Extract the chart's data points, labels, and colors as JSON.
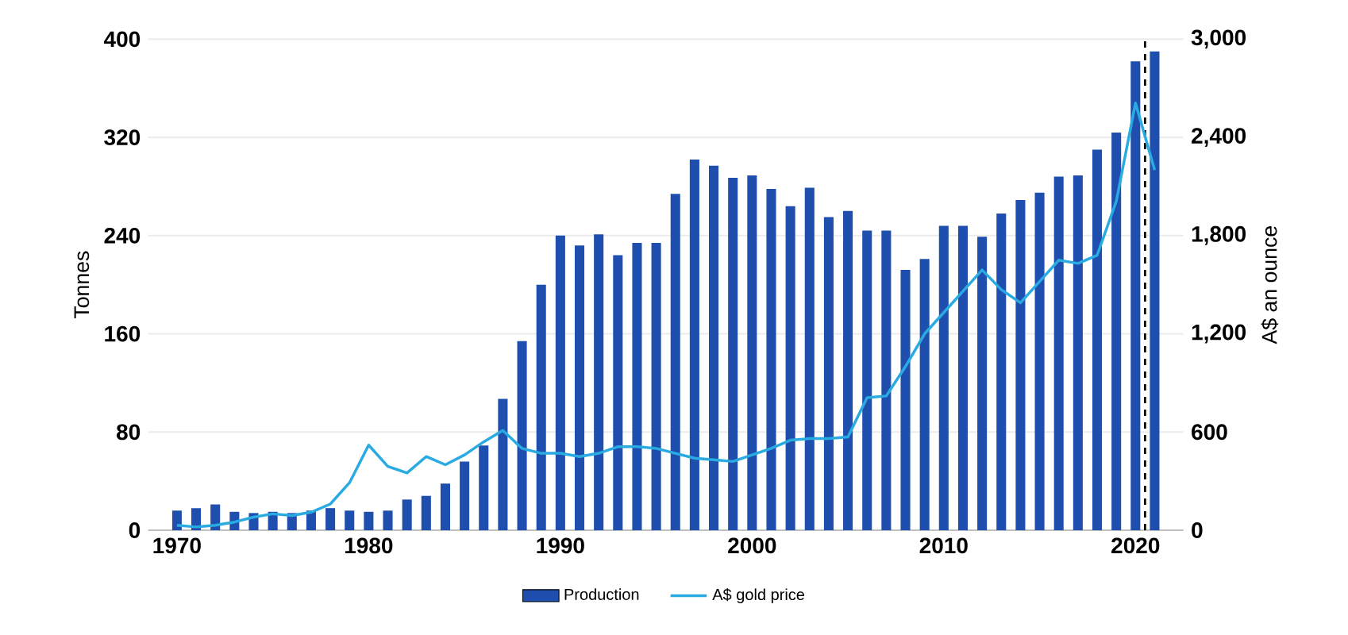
{
  "chart_data": {
    "type": "bar",
    "ylabel": "Tonnes",
    "y2label": "A$ an ounce",
    "x": [
      1970,
      1971,
      1972,
      1973,
      1974,
      1975,
      1976,
      1977,
      1978,
      1979,
      1980,
      1981,
      1982,
      1983,
      1984,
      1985,
      1986,
      1987,
      1988,
      1989,
      1990,
      1991,
      1992,
      1993,
      1994,
      1995,
      1996,
      1997,
      1998,
      1999,
      2000,
      2001,
      2002,
      2003,
      2004,
      2005,
      2006,
      2007,
      2008,
      2009,
      2010,
      2011,
      2012,
      2013,
      2014,
      2015,
      2016,
      2017,
      2018,
      2019,
      2020,
      2021
    ],
    "series": [
      {
        "name": "Production",
        "color": "#1f4fae",
        "values": [
          16,
          18,
          21,
          15,
          14,
          15,
          14,
          16,
          18,
          16,
          15,
          16,
          25,
          28,
          38,
          56,
          69,
          107,
          154,
          200,
          240,
          232,
          241,
          224,
          234,
          234,
          274,
          302,
          297,
          287,
          289,
          278,
          264,
          279,
          255,
          260,
          244,
          244,
          212,
          221,
          248,
          248,
          239,
          258,
          269,
          275,
          288,
          289,
          310,
          324,
          382,
          390
        ]
      },
      {
        "name": "A$ gold price",
        "type": "line",
        "axis": "y2",
        "color": "#29abe2",
        "values": [
          30,
          20,
          30,
          50,
          80,
          100,
          90,
          110,
          160,
          290,
          520,
          390,
          350,
          450,
          400,
          460,
          540,
          610,
          500,
          470,
          470,
          450,
          470,
          510,
          510,
          500,
          470,
          440,
          430,
          420,
          460,
          500,
          550,
          560,
          560,
          570,
          810,
          820,
          1000,
          1200,
          1330,
          1460,
          1590,
          1470,
          1390,
          1520,
          1650,
          1630,
          1680,
          2010,
          2610,
          2200
        ]
      }
    ],
    "xlim": [
      1968.5,
      2022.5
    ],
    "xticks": [
      1970,
      1980,
      1990,
      2000,
      2010,
      2020
    ],
    "ylim": [
      0,
      400
    ],
    "yticks": [
      0,
      80,
      160,
      240,
      320,
      400
    ],
    "y2lim": [
      0,
      3000
    ],
    "y2ticks": [
      0,
      600,
      {
        "value": 1200,
        "label": "1,200"
      },
      {
        "value": 1800,
        "label": "1,800"
      },
      {
        "value": 2400,
        "label": "2,400"
      },
      {
        "value": 3000,
        "label": "3,000"
      }
    ],
    "ref_lines": [
      {
        "axis": "x",
        "value": 2020.5,
        "color": "#000000",
        "line_style": "dashed"
      }
    ],
    "grid": "y",
    "legend": "bottom"
  }
}
